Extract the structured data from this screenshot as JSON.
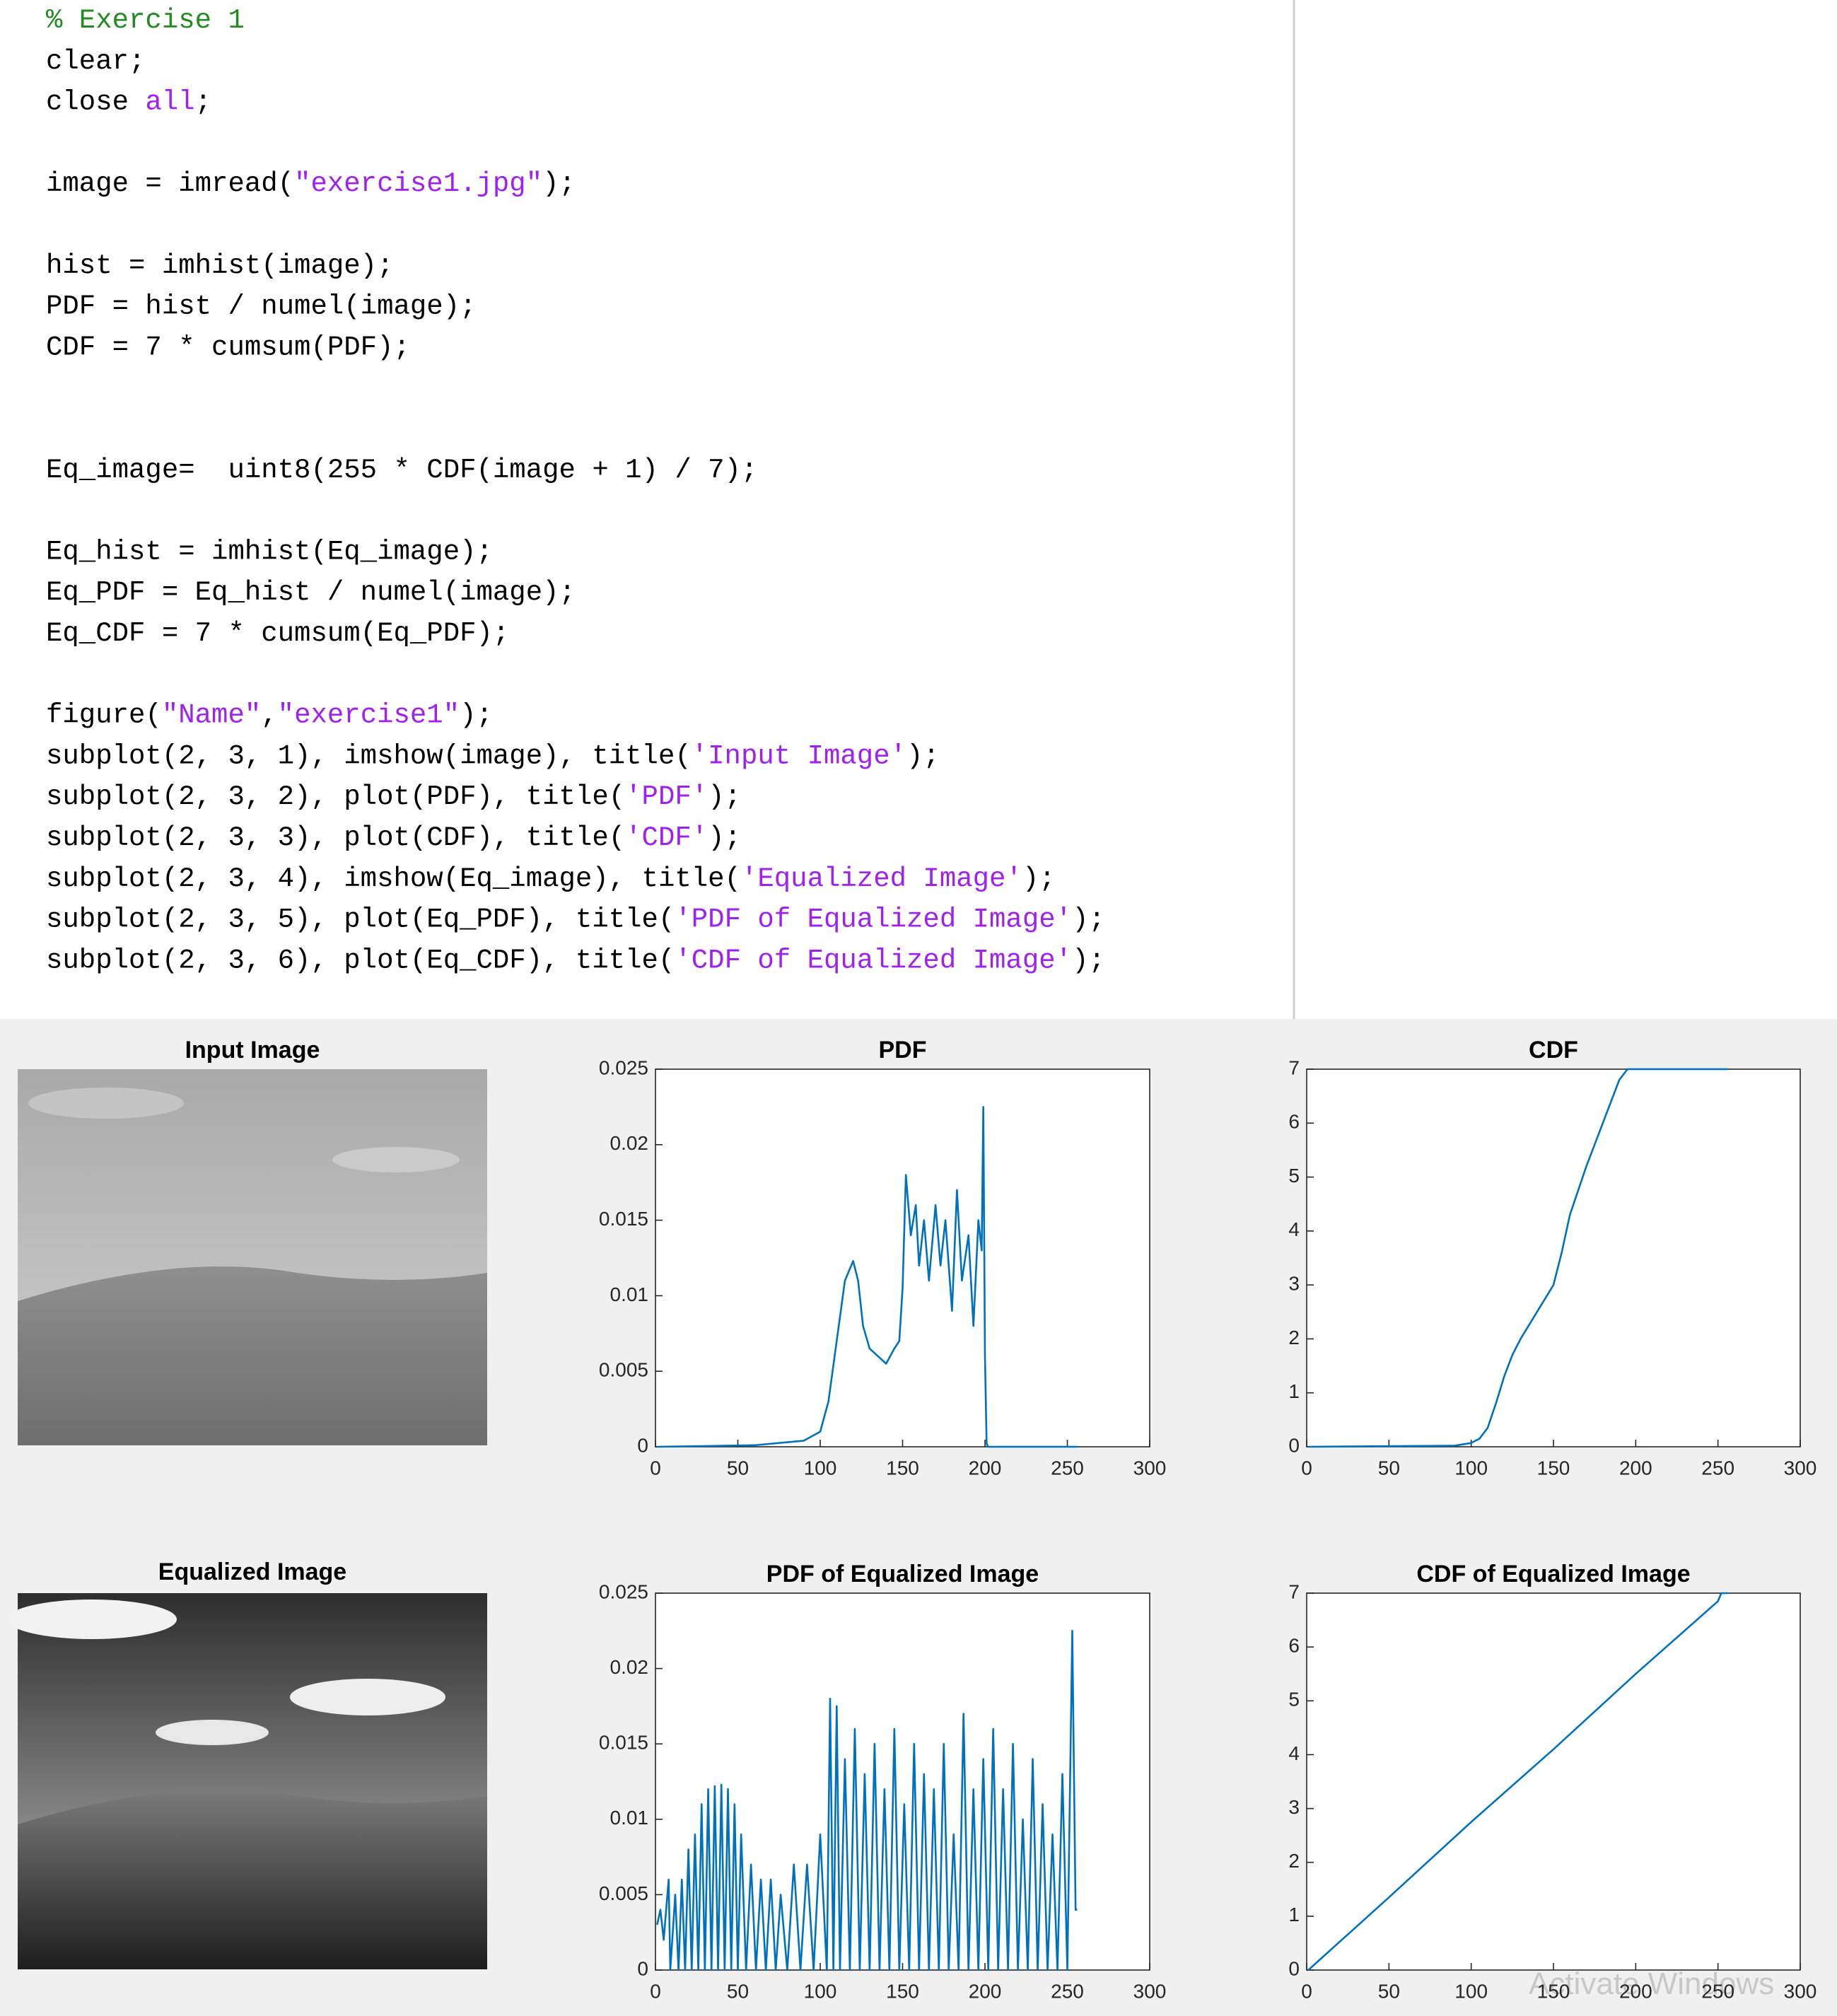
{
  "code": {
    "blocks": [
      [
        [
          {
            "text": "% Exercise 1",
            "color": "#228b22"
          }
        ],
        [
          {
            "text": "clear;"
          }
        ],
        [
          {
            "text": "close "
          },
          {
            "text": "all",
            "color": "#a020f0"
          },
          {
            "text": ";"
          }
        ]
      ],
      [
        [
          {
            "text": "image = imread("
          },
          {
            "text": "\"exercise1.jpg\"",
            "color": "#a020f0"
          },
          {
            "text": ");"
          }
        ]
      ],
      [
        [
          {
            "text": "hist = imhist(image);"
          }
        ],
        [
          {
            "text": "PDF = hist / numel(image);"
          }
        ],
        [
          {
            "text": "CDF = 7 * cumsum(PDF);"
          }
        ]
      ],
      [
        [
          {
            "text": "Eq_image=  uint8(255 * CDF(image + 1) / 7);"
          }
        ]
      ],
      [
        [
          {
            "text": "Eq_hist = imhist(Eq_image);"
          }
        ],
        [
          {
            "text": "Eq_PDF = Eq_hist / numel(image);"
          }
        ],
        [
          {
            "text": "Eq_CDF = 7 * cumsum(Eq_PDF);"
          }
        ]
      ],
      [
        [
          {
            "text": "figure("
          },
          {
            "text": "\"Name\"",
            "color": "#a020f0"
          },
          {
            "text": ","
          },
          {
            "text": "\"exercise1\"",
            "color": "#a020f0"
          },
          {
            "text": ");"
          }
        ],
        [
          {
            "text": "subplot(2, 3, 1), imshow(image), title("
          },
          {
            "text": "'Input Image'",
            "color": "#a020f0"
          },
          {
            "text": ");"
          }
        ],
        [
          {
            "text": "subplot(2, 3, 2), plot(PDF), title("
          },
          {
            "text": "'PDF'",
            "color": "#a020f0"
          },
          {
            "text": ");"
          }
        ],
        [
          {
            "text": "subplot(2, 3, 3), plot(CDF), title("
          },
          {
            "text": "'CDF'",
            "color": "#a020f0"
          },
          {
            "text": ");"
          }
        ],
        [
          {
            "text": "subplot(2, 3, 4), imshow(Eq_image), title("
          },
          {
            "text": "'Equalized Image'",
            "color": "#a020f0"
          },
          {
            "text": ");"
          }
        ],
        [
          {
            "text": "subplot(2, 3, 5), plot(Eq_PDF), title("
          },
          {
            "text": "'PDF of Equalized Image'",
            "color": "#a020f0"
          },
          {
            "text": ");"
          }
        ],
        [
          {
            "text": "subplot(2, 3, 6), plot(Eq_CDF), title("
          },
          {
            "text": "'CDF of Equalized Image'",
            "color": "#a020f0"
          },
          {
            "text": ");"
          }
        ]
      ]
    ]
  },
  "images": [
    {
      "title": "Input Image"
    },
    {
      "title": "Equalized Image"
    }
  ],
  "chart_data": [
    {
      "type": "line",
      "title": "PDF",
      "color": "#0072bd",
      "x": [
        1,
        60,
        90,
        100,
        105,
        110,
        115,
        120,
        123,
        126,
        130,
        135,
        140,
        145,
        148,
        150,
        152,
        155,
        158,
        160,
        163,
        166,
        170,
        173,
        176,
        180,
        183,
        186,
        190,
        193,
        196,
        198,
        199,
        200,
        201,
        202,
        210,
        256
      ],
      "values": [
        0,
        0.0001,
        0.0004,
        0.001,
        0.003,
        0.007,
        0.011,
        0.0123,
        0.011,
        0.008,
        0.0065,
        0.006,
        0.0055,
        0.0065,
        0.007,
        0.0105,
        0.018,
        0.014,
        0.016,
        0.012,
        0.015,
        0.011,
        0.016,
        0.012,
        0.015,
        0.009,
        0.017,
        0.011,
        0.014,
        0.008,
        0.015,
        0.013,
        0.0225,
        0.006,
        0.0002,
        0,
        0,
        0
      ],
      "xlim": [
        0,
        300
      ],
      "xticks": [
        0,
        50,
        100,
        150,
        200,
        250,
        300
      ],
      "ylim": [
        0,
        0.025
      ],
      "yticks": [
        0,
        0.005,
        0.01,
        0.015,
        0.02,
        0.025
      ]
    },
    {
      "type": "line",
      "title": "CDF",
      "color": "#0072bd",
      "x": [
        1,
        90,
        100,
        105,
        110,
        115,
        120,
        125,
        130,
        140,
        150,
        155,
        160,
        170,
        180,
        190,
        195,
        200,
        256
      ],
      "values": [
        0,
        0.02,
        0.07,
        0.15,
        0.35,
        0.8,
        1.3,
        1.7,
        2.0,
        2.5,
        3.0,
        3.6,
        4.3,
        5.2,
        6.0,
        6.8,
        7,
        7,
        7
      ],
      "xlim": [
        0,
        300
      ],
      "xticks": [
        0,
        50,
        100,
        150,
        200,
        250,
        300
      ],
      "ylim": [
        0,
        7
      ],
      "yticks": [
        0,
        1,
        2,
        3,
        4,
        5,
        6,
        7
      ]
    },
    {
      "type": "line",
      "title": "PDF of Equalized Image",
      "color": "#0072bd",
      "x": [
        1,
        3,
        5,
        8,
        9,
        12,
        14,
        16,
        18,
        20,
        22,
        24,
        26,
        28,
        30,
        32,
        34,
        36,
        38,
        40,
        42,
        44,
        46,
        48,
        50,
        52,
        55,
        58,
        61,
        64,
        67,
        70,
        73,
        76,
        80,
        84,
        88,
        92,
        96,
        100,
        104,
        106,
        108,
        110,
        112,
        115,
        118,
        121,
        124,
        127,
        130,
        133,
        136,
        139,
        142,
        145,
        148,
        151,
        154,
        157,
        160,
        163,
        166,
        169,
        172,
        175,
        178,
        181,
        184,
        187,
        190,
        193,
        196,
        199,
        202,
        205,
        208,
        211,
        214,
        217,
        220,
        223,
        226,
        229,
        232,
        235,
        238,
        241,
        244,
        247,
        250,
        253,
        255,
        256
      ],
      "values": [
        0.003,
        0.004,
        0.002,
        0.006,
        0,
        0.005,
        0,
        0.006,
        0,
        0.008,
        0,
        0.009,
        0,
        0.011,
        0,
        0.012,
        0,
        0.0122,
        0,
        0.0123,
        0,
        0.012,
        0,
        0.011,
        0,
        0.009,
        0,
        0.007,
        0,
        0.006,
        0,
        0.006,
        0,
        0.005,
        0,
        0.007,
        0,
        0.007,
        0,
        0.009,
        0,
        0.018,
        0,
        0.0175,
        0,
        0.014,
        0,
        0.016,
        0,
        0.013,
        0,
        0.015,
        0,
        0.012,
        0,
        0.016,
        0,
        0.011,
        0,
        0.015,
        0,
        0.013,
        0,
        0.012,
        0,
        0.015,
        0,
        0.009,
        0,
        0.017,
        0,
        0.012,
        0,
        0.014,
        0,
        0.016,
        0,
        0.012,
        0,
        0.015,
        0,
        0.01,
        0,
        0.014,
        0,
        0.011,
        0,
        0.009,
        0,
        0.013,
        0,
        0.0225,
        0.004,
        0.004
      ],
      "xlim": [
        0,
        300
      ],
      "xticks": [
        0,
        50,
        100,
        150,
        200,
        250,
        300
      ],
      "ylim": [
        0,
        0.025
      ],
      "yticks": [
        0,
        0.005,
        0.01,
        0.015,
        0.02,
        0.025
      ]
    },
    {
      "type": "line",
      "title": "CDF of Equalized Image",
      "color": "#0072bd",
      "x": [
        1,
        50,
        100,
        150,
        200,
        250,
        252,
        256
      ],
      "values": [
        0,
        1.35,
        2.75,
        4.1,
        5.5,
        6.85,
        7,
        7
      ],
      "xlim": [
        0,
        300
      ],
      "xticks": [
        0,
        50,
        100,
        150,
        200,
        250,
        300
      ],
      "ylim": [
        0,
        7
      ],
      "yticks": [
        0,
        1,
        2,
        3,
        4,
        5,
        6,
        7
      ]
    }
  ],
  "watermark": "Activate Windows"
}
